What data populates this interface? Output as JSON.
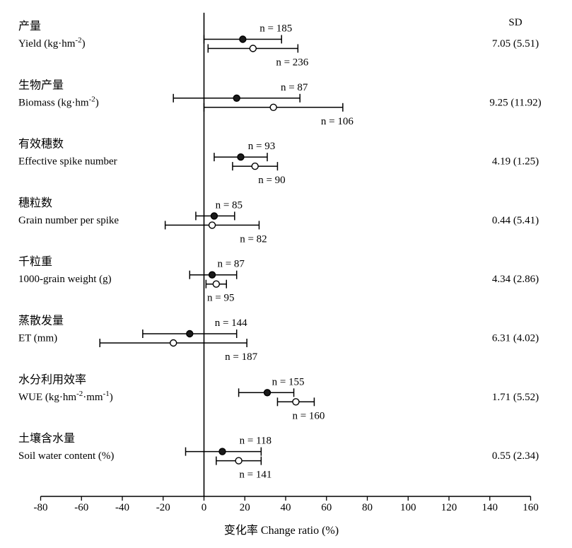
{
  "chart_data": {
    "type": "forest",
    "xlabel": "变化率 Change ratio (%)",
    "xlim": [
      -80,
      160
    ],
    "xticks": [
      -80,
      -60,
      -40,
      -20,
      0,
      20,
      40,
      60,
      80,
      100,
      120,
      140,
      160
    ],
    "sd_header": "SD",
    "marker_styles": {
      "filled": "filled-circle",
      "open": "open-circle"
    },
    "colors": {
      "line": "#000000",
      "filled_marker": "#1a1a1a",
      "open_marker": "#ffffff"
    },
    "categories": [
      {
        "zh": "产量",
        "en": "Yield (kg·hm",
        "en_sup": "-2",
        "en_tail": ")",
        "sd": "7.05 (5.51)",
        "filled": {
          "mean": 19,
          "low": 0,
          "high": 38,
          "n_label": "n = 185"
        },
        "open": {
          "mean": 24,
          "low": 2,
          "high": 46,
          "n_label": "n = 236"
        }
      },
      {
        "zh": "生物产量",
        "en": "Biomass (kg·hm",
        "en_sup": "-2",
        "en_tail": ")",
        "sd": "9.25 (11.92)",
        "filled": {
          "mean": 16,
          "low": -15,
          "high": 47,
          "n_label": "n = 87"
        },
        "open": {
          "mean": 34,
          "low": 0,
          "high": 68,
          "n_label": "n = 106"
        }
      },
      {
        "zh": "有效穗数",
        "en": "Effective spike number",
        "en_sup": "",
        "en_tail": "",
        "sd": "4.19 (1.25)",
        "filled": {
          "mean": 18,
          "low": 5,
          "high": 31,
          "n_label": "n = 93"
        },
        "open": {
          "mean": 25,
          "low": 14,
          "high": 36,
          "n_label": "n = 90"
        }
      },
      {
        "zh": "穗粒数",
        "en": "Grain number per spike",
        "en_sup": "",
        "en_tail": "",
        "sd": "0.44 (5.41)",
        "filled": {
          "mean": 5,
          "low": -4,
          "high": 15,
          "n_label": "n = 85"
        },
        "open": {
          "mean": 4,
          "low": -19,
          "high": 27,
          "n_label": "n = 82"
        }
      },
      {
        "zh": "千粒重",
        "en": "1000-grain weight (g)",
        "en_sup": "",
        "en_tail": "",
        "sd": "4.34 (2.86)",
        "filled": {
          "mean": 4,
          "low": -7,
          "high": 16,
          "n_label": "n = 87"
        },
        "open": {
          "mean": 6,
          "low": 1,
          "high": 11,
          "n_label": "n = 95"
        }
      },
      {
        "zh": "蒸散发量",
        "en": "ET (mm)",
        "en_sup": "",
        "en_tail": "",
        "sd": "6.31 (4.02)",
        "filled": {
          "mean": -7,
          "low": -30,
          "high": 16,
          "n_label": "n = 144"
        },
        "open": {
          "mean": -15,
          "low": -51,
          "high": 21,
          "n_label": "n = 187"
        }
      },
      {
        "zh": "水分利用效率",
        "en": "WUE (kg·hm",
        "en_sup": "-2",
        "en_mid": "·mm",
        "en_sup2": "-1",
        "en_tail": ")",
        "sd": "1.71 (5.52)",
        "filled": {
          "mean": 31,
          "low": 17,
          "high": 44,
          "n_label": "n = 155"
        },
        "open": {
          "mean": 45,
          "low": 36,
          "high": 54,
          "n_label": "n = 160"
        }
      },
      {
        "zh": "土壤含水量",
        "en": "Soil water content (%)",
        "en_sup": "",
        "en_tail": "",
        "sd": "0.55 (2.34)",
        "filled": {
          "mean": 9,
          "low": -9,
          "high": 28,
          "n_label": "n = 118"
        },
        "open": {
          "mean": 17,
          "low": 6,
          "high": 28,
          "n_label": "n = 141"
        }
      }
    ]
  }
}
